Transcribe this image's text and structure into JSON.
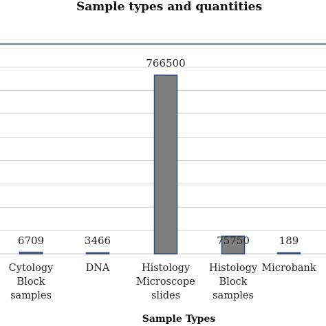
{
  "chart_data": {
    "type": "bar",
    "title": "Sample types and quantities",
    "xlabel": "Sample Types",
    "ylabel": "",
    "categories": [
      [
        "Cytology",
        "Block",
        "samples"
      ],
      [
        "DNA"
      ],
      [
        "Histology",
        "Microscope",
        "slides"
      ],
      [
        "Histology",
        "Block",
        "samples"
      ],
      [
        "Microbank"
      ]
    ],
    "values": [
      6709,
      3466,
      766500,
      75750,
      189
    ],
    "data_labels": [
      "6709",
      "3466",
      "766500",
      "75750",
      "189"
    ],
    "ylim": [
      0,
      900000
    ],
    "grid": true,
    "legend": "none",
    "colors": {
      "bar_fill": "#7f7f7f",
      "bar_stroke": "#2f4b7c",
      "grid": "#d0d0d0",
      "frame": "#3c5a8a"
    }
  }
}
